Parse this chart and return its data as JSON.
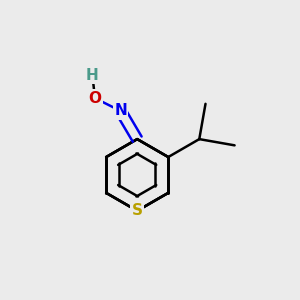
{
  "background_color": "#ebebeb",
  "atom_colors": {
    "C": "#000000",
    "H": "#4a9a8a",
    "O": "#cc0000",
    "N": "#0000ee",
    "S": "#b8a000"
  },
  "bond_color": "#000000",
  "bond_width": 1.8,
  "figsize": [
    3.0,
    3.0
  ],
  "dpi": 100
}
